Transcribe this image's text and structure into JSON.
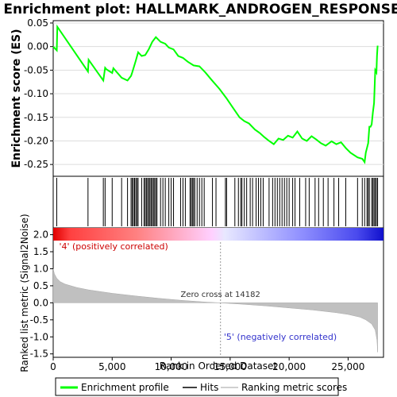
{
  "chart_data": [
    {
      "type": "line",
      "panel": "enrichment",
      "title": "Enrichment plot: HALLMARK_ANDROGEN_RESPONSE",
      "ylabel": "Enrichment score (ES)",
      "xlim": [
        0,
        28000
      ],
      "ylim": [
        -0.275,
        0.055
      ],
      "y_ticks": [
        0.05,
        0.0,
        -0.05,
        -0.1,
        -0.15,
        -0.2,
        -0.25
      ],
      "y_tick_labels": [
        "0.05",
        "0.00",
        "-0.05",
        "-0.10",
        "-0.15",
        "-0.20",
        "-0.25"
      ],
      "series": [
        {
          "name": "Enrichment profile",
          "color": "#00ff00",
          "x": [
            0,
            300,
            350,
            2950,
            3000,
            4250,
            4400,
            4500,
            5000,
            5100,
            5800,
            6300,
            6600,
            6700,
            7000,
            7200,
            7500,
            7800,
            8100,
            8400,
            8700,
            9100,
            9500,
            9800,
            10200,
            10600,
            11000,
            11400,
            11900,
            12400,
            12900,
            13400,
            14100,
            14700,
            15300,
            15800,
            16200,
            16600,
            17100,
            17500,
            17900,
            18300,
            18700,
            19100,
            19500,
            19900,
            20300,
            20700,
            21100,
            21500,
            21900,
            22300,
            22700,
            23100,
            23600,
            24000,
            24400,
            24800,
            25200,
            25800,
            26200,
            26400,
            26500,
            26700,
            26800,
            26900,
            27000,
            27100,
            27200,
            27300,
            27400,
            27450,
            27500
          ],
          "y": [
            0.0,
            -0.008,
            0.042,
            -0.053,
            -0.028,
            -0.072,
            -0.045,
            -0.048,
            -0.056,
            -0.046,
            -0.066,
            -0.072,
            -0.062,
            -0.055,
            -0.03,
            -0.012,
            -0.02,
            -0.018,
            -0.006,
            0.01,
            0.02,
            0.01,
            0.006,
            -0.002,
            -0.006,
            -0.02,
            -0.024,
            -0.032,
            -0.04,
            -0.042,
            -0.055,
            -0.07,
            -0.09,
            -0.11,
            -0.132,
            -0.15,
            -0.158,
            -0.163,
            -0.176,
            -0.183,
            -0.192,
            -0.2,
            -0.207,
            -0.195,
            -0.198,
            -0.189,
            -0.193,
            -0.18,
            -0.195,
            -0.2,
            -0.19,
            -0.197,
            -0.205,
            -0.21,
            -0.201,
            -0.207,
            -0.203,
            -0.215,
            -0.225,
            -0.235,
            -0.238,
            -0.245,
            -0.225,
            -0.205,
            -0.17,
            -0.17,
            -0.165,
            -0.14,
            -0.12,
            -0.05,
            -0.055,
            -0.02,
            0.002
          ]
        }
      ]
    },
    {
      "type": "scatter",
      "panel": "hits",
      "series": [
        {
          "name": "Hits",
          "color": "#000000",
          "x": [
            300,
            2950,
            4250,
            4400,
            5000,
            5800,
            6300,
            6600,
            6700,
            6800,
            6900,
            7000,
            7100,
            7200,
            7500,
            7700,
            7800,
            7900,
            8000,
            8100,
            8200,
            8300,
            8400,
            8500,
            8600,
            8700,
            8800,
            9100,
            9300,
            9500,
            9800,
            10000,
            10200,
            10800,
            11000,
            11200,
            11600,
            11700,
            11800,
            11900,
            12000,
            12200,
            12400,
            12600,
            12800,
            13500,
            13800,
            14600,
            14700,
            15400,
            15700,
            15900,
            16000,
            16200,
            16400,
            16700,
            16900,
            17200,
            17400,
            17600,
            17800,
            18300,
            18600,
            18800,
            19000,
            19200,
            19400,
            19600,
            19800,
            20000,
            20300,
            20500,
            20900,
            21400,
            21700,
            22200,
            22500,
            22900,
            23300,
            23800,
            24200,
            24800,
            25800,
            26200,
            26400,
            26600,
            26700,
            26800,
            27000,
            27100,
            27200,
            27300,
            27400,
            27500
          ]
        }
      ]
    },
    {
      "type": "area",
      "panel": "ranked_metric",
      "ylabel": "Ranked list metric (Signal2Noise)",
      "xlabel": "Rank in Ordered Dataset",
      "xlim": [
        0,
        28000
      ],
      "ylim": [
        -1.6,
        2.2
      ],
      "x_ticks": [
        0,
        5000,
        10000,
        15000,
        20000,
        25000
      ],
      "x_tick_labels": [
        "0",
        "5,000",
        "10,000",
        "15,000",
        "20,000",
        "25,000"
      ],
      "y_ticks": [
        2.0,
        1.5,
        1.0,
        0.5,
        0.0,
        -0.5,
        -1.0,
        -1.5
      ],
      "y_tick_labels": [
        "2.0",
        "1.5",
        "1.0",
        "0.5",
        "0.0",
        "-0.5",
        "-1.0",
        "-1.5"
      ],
      "series": [
        {
          "name": "Ranking metric scores",
          "color": "#c0c0c0",
          "x": [
            0,
            100,
            300,
            600,
            1000,
            2000,
            3000,
            5000,
            7000,
            9000,
            11000,
            13000,
            14182,
            16000,
            18000,
            20000,
            22000,
            24000,
            25000,
            26000,
            26500,
            27000,
            27300,
            27450,
            27500
          ],
          "y": [
            1.0,
            0.85,
            0.72,
            0.62,
            0.55,
            0.45,
            0.38,
            0.28,
            0.2,
            0.13,
            0.07,
            0.02,
            0.0,
            -0.04,
            -0.09,
            -0.15,
            -0.21,
            -0.29,
            -0.34,
            -0.42,
            -0.5,
            -0.62,
            -0.8,
            -1.1,
            -1.45
          ]
        }
      ],
      "annotations": [
        {
          "text": "'4' (positively correlated)",
          "color": "#cc0000",
          "x": 300
        },
        {
          "text": "Zero cross at 14182",
          "color": "#333333",
          "x": 14182
        },
        {
          "text": "'5' (negatively correlated)",
          "color": "#3333cc",
          "x": 14800
        }
      ]
    }
  ],
  "legend": {
    "items": [
      {
        "label": "Enrichment profile",
        "color": "#00ff00"
      },
      {
        "label": "Hits",
        "color": "#000000"
      },
      {
        "label": "Ranking metric scores",
        "color": "#c0c0c0"
      }
    ],
    "placement": "bottom"
  }
}
